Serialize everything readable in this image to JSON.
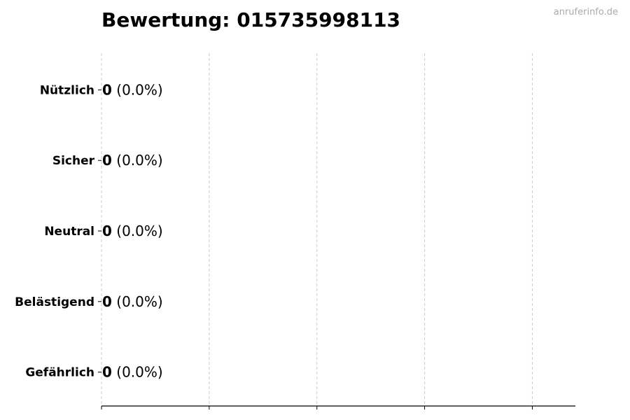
{
  "chart_data": {
    "type": "bar",
    "orientation": "horizontal",
    "title": "Bewertung: 015735998113",
    "watermark": "anruferinfo.de",
    "categories": [
      "Nützlich",
      "Sicher",
      "Neutral",
      "Belästigend",
      "Gefährlich"
    ],
    "values": [
      0,
      0,
      0,
      0,
      0
    ],
    "value_labels": [
      "0",
      "0",
      "0",
      "0",
      "0"
    ],
    "percent_labels": [
      "(0.0%)",
      "(0.0%)",
      "(0.0%)",
      "(0.0%)",
      "(0.0%)"
    ],
    "xlim": [
      0,
      4.4
    ],
    "xticks": [
      0,
      1,
      2,
      3,
      4
    ],
    "xtick_labels_visible": false,
    "grid": "x-dashed",
    "colors": {
      "bar_edge": "#000000",
      "grid": "#cccccc",
      "watermark": "#aaaaaa"
    }
  }
}
